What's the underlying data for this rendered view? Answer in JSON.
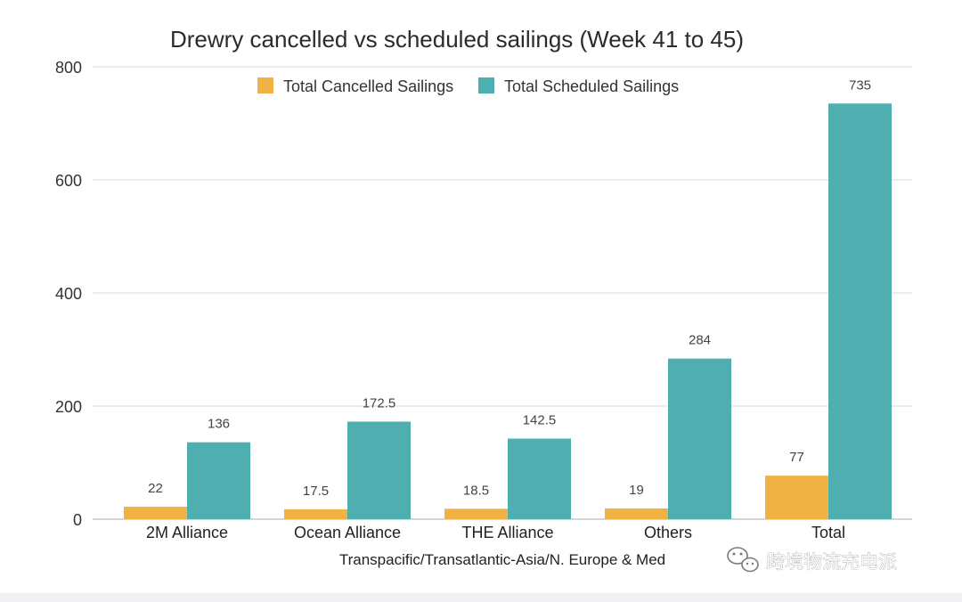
{
  "chart_data": {
    "type": "bar",
    "title": "Drewry cancelled vs scheduled sailings (Week 41 to 45)",
    "xlabel": "Transpacific/Transatlantic-Asia/N. Europe & Med",
    "ylabel": "",
    "categories": [
      "2M Alliance",
      "Ocean Alliance",
      "THE Alliance",
      "Others",
      "Total"
    ],
    "series": [
      {
        "name": "Total Cancelled Sailings",
        "color": "#efb243",
        "values": [
          22,
          17.5,
          18.5,
          19,
          77
        ],
        "labels": [
          "22",
          "17.5",
          "18.5",
          "19",
          "77"
        ]
      },
      {
        "name": "Total Scheduled Sailings",
        "color": "#4fafb0",
        "values": [
          136,
          172.5,
          142.5,
          284,
          735
        ],
        "labels": [
          "136",
          "172.5",
          "142.5",
          "284",
          "735"
        ]
      }
    ],
    "ylim": [
      0,
      800
    ],
    "yticks": [
      "0",
      "200",
      "400",
      "600",
      "800"
    ],
    "grid": true,
    "legend_position": "top-center"
  },
  "watermark": {
    "text": "跨境物流充电派",
    "icon": "wechat-icon"
  },
  "colors": {
    "gridline": "#d9d9d9",
    "axis": "#c8c8c8",
    "background": "#ffffff",
    "page_background": "#f1f1f3"
  }
}
